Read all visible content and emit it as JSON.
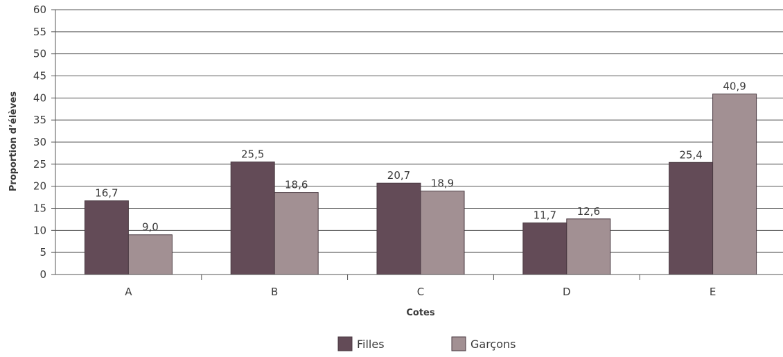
{
  "chart_data": {
    "type": "bar",
    "categories": [
      "A",
      "B",
      "C",
      "D",
      "E"
    ],
    "series": [
      {
        "name": "Filles",
        "values": [
          16.7,
          25.5,
          20.7,
          11.7,
          25.4
        ],
        "labels": [
          "16,7",
          "25,5",
          "20,7",
          "11,7",
          "25,4"
        ],
        "color": "#634b57"
      },
      {
        "name": "Garçons",
        "values": [
          9.0,
          18.6,
          18.9,
          12.6,
          40.9
        ],
        "labels": [
          "9,0",
          "18,6",
          "18,9",
          "12,6",
          "40,9"
        ],
        "color": "#a29093"
      }
    ],
    "xlabel": "Cotes",
    "ylabel": "Proportion d’élèves",
    "ylim": [
      0,
      60
    ],
    "yticks": [
      0,
      5,
      10,
      15,
      20,
      25,
      30,
      35,
      40,
      45,
      50,
      55,
      60
    ],
    "grid": true,
    "legend": "bottom"
  }
}
